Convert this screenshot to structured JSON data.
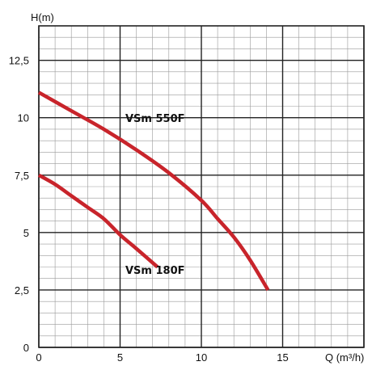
{
  "chart_data": {
    "type": "line",
    "xlabel": "Q (m³/h)",
    "ylabel": "H(m)",
    "xlim": [
      0,
      20
    ],
    "ylim": [
      0,
      14
    ],
    "x_ticks": [
      "0",
      "5",
      "10",
      "15"
    ],
    "y_ticks": [
      "0",
      "2,5",
      "5",
      "7,5",
      "10",
      "12,5"
    ],
    "grid": true,
    "colors": {
      "series": "#c8242b",
      "grid": "#222222",
      "minor_grid": "#9a9a9a"
    },
    "series": [
      {
        "name": "VSm 550F",
        "x": [
          0,
          2,
          4,
          6,
          8,
          10,
          11,
          12,
          13,
          14.1
        ],
        "y": [
          11.1,
          10.3,
          9.5,
          8.6,
          7.6,
          6.4,
          5.6,
          4.8,
          3.8,
          2.5
        ]
      },
      {
        "name": "VSm 180F",
        "x": [
          0,
          1,
          2,
          3,
          4,
          5,
          6,
          7.3
        ],
        "y": [
          7.5,
          7.1,
          6.6,
          6.1,
          5.6,
          4.9,
          4.3,
          3.5
        ]
      }
    ]
  }
}
